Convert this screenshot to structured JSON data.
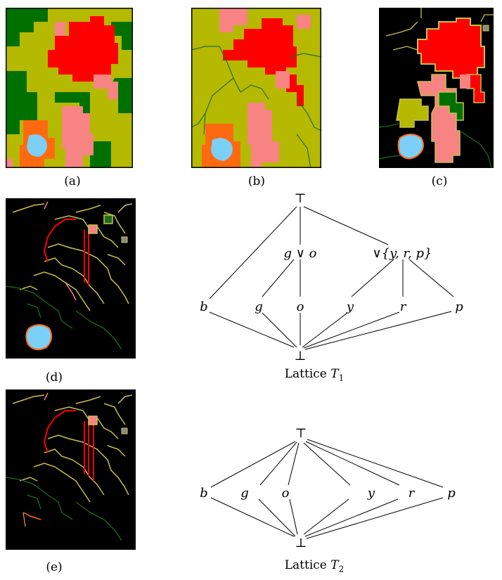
{
  "figure": {
    "panels": [
      {
        "id": "a",
        "caption": "(a)",
        "background": "#b5b900",
        "border": true
      },
      {
        "id": "b",
        "caption": "(b)",
        "background": "#b5b900",
        "border": true
      },
      {
        "id": "c",
        "caption": "(c)",
        "background": "#000000",
        "border": false
      },
      {
        "id": "d",
        "caption": "(d)",
        "background": "#000000",
        "border": false
      },
      {
        "id": "e",
        "caption": "(e)",
        "background": "#000000",
        "border": false
      }
    ],
    "colors": {
      "red": "#ff0000",
      "pink": "#f78383",
      "olive": "#b5b900",
      "green": "#007000",
      "orange": "#ff6a10",
      "cyan": "#7ccff7",
      "yellow_line": "#c9c14a",
      "darkgreen_line": "#1f6b1f"
    }
  },
  "lattice1": {
    "caption_text": "Lattice ",
    "caption_var": "T",
    "caption_sub": "1",
    "top": "⊤",
    "bottom": "⊥",
    "join_go": "g ∨ o",
    "join_yrp": "∨{y, r, p}",
    "atoms": [
      "b",
      "g",
      "o",
      "y",
      "r",
      "p"
    ]
  },
  "lattice2": {
    "caption_text": "Lattice ",
    "caption_var": "T",
    "caption_sub": "2",
    "top": "⊤",
    "bottom": "⊥",
    "atoms": [
      "b",
      "g",
      "o",
      "y",
      "r",
      "p"
    ]
  }
}
